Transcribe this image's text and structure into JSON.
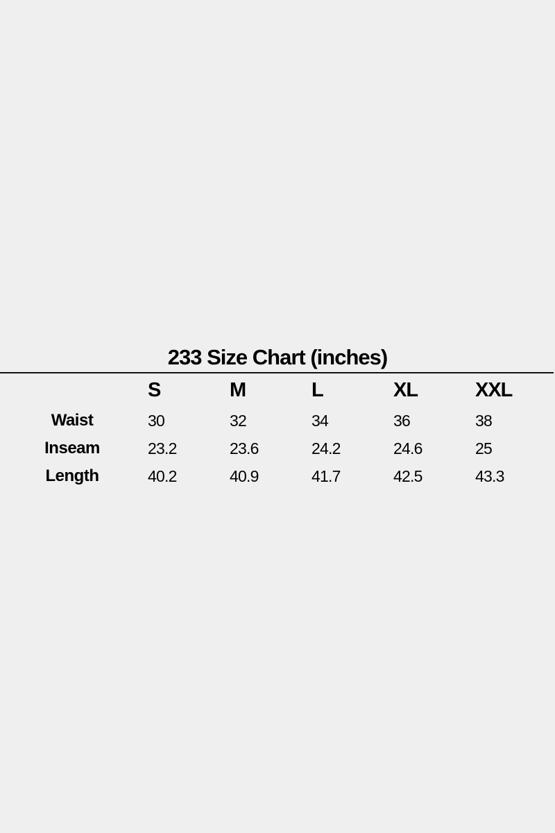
{
  "title": "233 Size Chart (inches)",
  "sizes": [
    "S",
    "M",
    "L",
    "XL",
    "XXL"
  ],
  "rows": [
    {
      "label": "Waist",
      "values": [
        "30",
        "32",
        "34",
        "36",
        "38"
      ]
    },
    {
      "label": "Inseam",
      "values": [
        "23.2",
        "23.6",
        "24.2",
        "24.6",
        "25"
      ]
    },
    {
      "label": "Length",
      "values": [
        "40.2",
        "40.9",
        "41.7",
        "42.5",
        "43.3"
      ]
    }
  ]
}
